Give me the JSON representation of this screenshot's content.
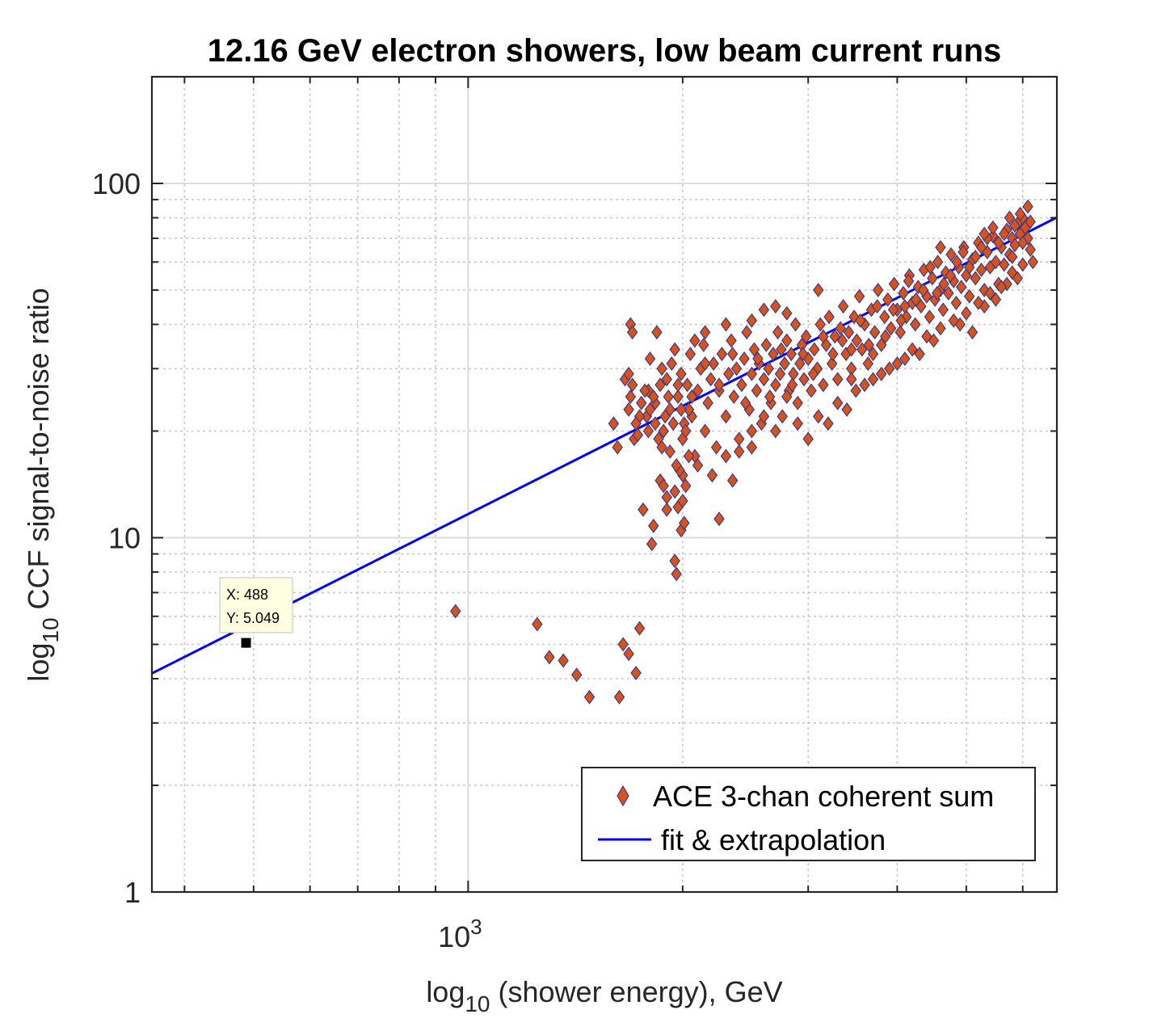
{
  "chart_data": {
    "type": "scatter",
    "title": "12.16 GeV electron showers, low beam current runs",
    "xlabel": "log10 (shower energy), GeV",
    "ylabel": "log10 CCF signal-to-noise ratio",
    "xlabel_parts": {
      "pre": "log",
      "sub": "10",
      "post": " (shower energy), GeV"
    },
    "ylabel_parts": {
      "pre": "log",
      "sub": "10",
      "post": " CCF signal-to-noise ratio"
    },
    "xscale": "log",
    "yscale": "log",
    "xlim": [
      360,
      6700
    ],
    "ylim": [
      1,
      200
    ],
    "grid": true,
    "x_major_ticks": [
      {
        "value": 1000,
        "base": "10",
        "exp": "3"
      }
    ],
    "y_major_ticks": [
      {
        "value": 1,
        "label": "1"
      },
      {
        "value": 10,
        "label": "10"
      },
      {
        "value": 100,
        "label": "100"
      }
    ],
    "legend": {
      "location": "bottom-right",
      "entries": [
        "ACE 3-chan coherent sum",
        "fit & extrapolation"
      ]
    },
    "series": [
      {
        "name": "ACE 3-chan coherent sum",
        "kind": "scatter",
        "marker": "diamond",
        "face_color": "#D95319",
        "edge_color": "#3A3A8C",
        "points": [
          [
            960,
            6.2
          ],
          [
            1250,
            5.7
          ],
          [
            1300,
            4.6
          ],
          [
            1360,
            4.5
          ],
          [
            1420,
            4.1
          ],
          [
            1480,
            3.55
          ],
          [
            1630,
            3.55
          ],
          [
            1650,
            5.0
          ],
          [
            1680,
            4.7
          ],
          [
            1720,
            4.15
          ],
          [
            1740,
            5.55
          ],
          [
            1660,
            28
          ],
          [
            1690,
            40
          ],
          [
            1700,
            38
          ],
          [
            1680,
            29
          ],
          [
            1710,
            19
          ],
          [
            1760,
            12
          ],
          [
            1820,
            10.8
          ],
          [
            1810,
            9.6
          ],
          [
            1840,
            38
          ],
          [
            1860,
            14.5
          ],
          [
            1880,
            14
          ],
          [
            1900,
            13
          ],
          [
            1600,
            21
          ],
          [
            1620,
            18
          ],
          [
            1780,
            22
          ],
          [
            1790,
            26
          ],
          [
            1800,
            32
          ],
          [
            1830,
            24
          ],
          [
            1860,
            27
          ],
          [
            1870,
            30
          ],
          [
            1880,
            20
          ],
          [
            1900,
            28
          ],
          [
            1920,
            23
          ],
          [
            1930,
            31
          ],
          [
            1950,
            34
          ],
          [
            1970,
            25
          ],
          [
            1990,
            29
          ],
          [
            2010,
            21
          ],
          [
            2030,
            27
          ],
          [
            2050,
            33
          ],
          [
            2060,
            22
          ],
          [
            2080,
            17
          ],
          [
            2100,
            26
          ],
          [
            2120,
            30
          ],
          [
            2140,
            35
          ],
          [
            2150,
            20
          ],
          [
            2170,
            24
          ],
          [
            2190,
            28
          ],
          [
            2210,
            31
          ],
          [
            2230,
            18
          ],
          [
            2250,
            26
          ],
          [
            2270,
            33
          ],
          [
            2300,
            22
          ],
          [
            2320,
            29
          ],
          [
            2340,
            36
          ],
          [
            2360,
            25
          ],
          [
            2380,
            30
          ],
          [
            2400,
            19
          ],
          [
            2420,
            27
          ],
          [
            2440,
            32
          ],
          [
            2460,
            38
          ],
          [
            2480,
            23
          ],
          [
            2500,
            29
          ],
          [
            2520,
            34
          ],
          [
            2540,
            26
          ],
          [
            2560,
            31
          ],
          [
            2580,
            21
          ],
          [
            2600,
            28
          ],
          [
            2620,
            35
          ],
          [
            2640,
            30
          ],
          [
            2660,
            24
          ],
          [
            2680,
            33
          ],
          [
            2700,
            27
          ],
          [
            2720,
            38
          ],
          [
            2740,
            29
          ],
          [
            2760,
            22
          ],
          [
            2780,
            31
          ],
          [
            2800,
            36
          ],
          [
            2820,
            26
          ],
          [
            2840,
            33
          ],
          [
            2860,
            29
          ],
          [
            2880,
            40
          ],
          [
            2900,
            24
          ],
          [
            2920,
            31
          ],
          [
            2940,
            35
          ],
          [
            2960,
            28
          ],
          [
            2980,
            37
          ],
          [
            3000,
            32
          ],
          [
            3030,
            26
          ],
          [
            3060,
            34
          ],
          [
            3090,
            30
          ],
          [
            3120,
            40
          ],
          [
            3150,
            27
          ],
          [
            3180,
            35
          ],
          [
            3210,
            42
          ],
          [
            3240,
            31
          ],
          [
            3270,
            37
          ],
          [
            3300,
            28
          ],
          [
            3330,
            39
          ],
          [
            3360,
            45
          ],
          [
            3390,
            33
          ],
          [
            3420,
            38
          ],
          [
            3450,
            30
          ],
          [
            3480,
            42
          ],
          [
            3510,
            36
          ],
          [
            3540,
            48
          ],
          [
            3570,
            34
          ],
          [
            3600,
            40
          ],
          [
            3640,
            31
          ],
          [
            3680,
            44
          ],
          [
            3720,
            38
          ],
          [
            3760,
            50
          ],
          [
            3800,
            35
          ],
          [
            3840,
            42
          ],
          [
            3880,
            47
          ],
          [
            3920,
            39
          ],
          [
            3960,
            52
          ],
          [
            4000,
            44
          ],
          [
            4040,
            38
          ],
          [
            4080,
            49
          ],
          [
            4120,
            42
          ],
          [
            4160,
            55
          ],
          [
            4200,
            46
          ],
          [
            4240,
            40
          ],
          [
            4280,
            51
          ],
          [
            4320,
            45
          ],
          [
            4360,
            57
          ],
          [
            4400,
            48
          ],
          [
            4440,
            42
          ],
          [
            4480,
            54
          ],
          [
            4520,
            47
          ],
          [
            4560,
            60
          ],
          [
            4600,
            50
          ],
          [
            4640,
            44
          ],
          [
            4680,
            56
          ],
          [
            4720,
            49
          ],
          [
            4760,
            63
          ],
          [
            4800,
            53
          ],
          [
            4840,
            46
          ],
          [
            4880,
            58
          ],
          [
            4920,
            51
          ],
          [
            4960,
            66
          ],
          [
            5000,
            55
          ],
          [
            5050,
            48
          ],
          [
            5100,
            61
          ],
          [
            5150,
            54
          ],
          [
            5200,
            68
          ],
          [
            5250,
            57
          ],
          [
            5300,
            50
          ],
          [
            5350,
            64
          ],
          [
            5400,
            58
          ],
          [
            5450,
            71
          ],
          [
            5500,
            60
          ],
          [
            5550,
            52
          ],
          [
            5600,
            66
          ],
          [
            5650,
            59
          ],
          [
            5700,
            74
          ],
          [
            5750,
            63
          ],
          [
            5800,
            70
          ],
          [
            5850,
            67
          ],
          [
            5900,
            77
          ],
          [
            5950,
            72
          ],
          [
            6000,
            80
          ],
          [
            6050,
            75
          ],
          [
            6100,
            86
          ],
          [
            6150,
            78
          ],
          [
            6200,
            60
          ],
          [
            5100,
            38
          ],
          [
            4900,
            40
          ],
          [
            5300,
            45
          ],
          [
            5500,
            47
          ],
          [
            5700,
            52
          ],
          [
            5900,
            54
          ],
          [
            4500,
            36
          ],
          [
            4300,
            33
          ],
          [
            4100,
            32
          ],
          [
            3900,
            30
          ],
          [
            3700,
            28
          ],
          [
            3500,
            26
          ],
          [
            3300,
            24
          ],
          [
            3100,
            22
          ],
          [
            2900,
            21
          ],
          [
            2700,
            20
          ],
          [
            2500,
            18
          ],
          [
            2300,
            17
          ],
          [
            2100,
            16
          ],
          [
            2000,
            15
          ],
          [
            1950,
            13.5
          ],
          [
            1900,
            12
          ],
          [
            1980,
            15.5
          ],
          [
            2040,
            17
          ],
          [
            1990,
            10.5
          ],
          [
            2010,
            11
          ],
          [
            1970,
            12.2
          ],
          [
            1950,
            8.6
          ],
          [
            1960,
            7.9
          ],
          [
            2000,
            12.7
          ],
          [
            2020,
            14
          ],
          [
            1960,
            16
          ],
          [
            1920,
            17.5
          ],
          [
            2000,
            19
          ],
          [
            2200,
            15
          ],
          [
            2350,
            14.5
          ],
          [
            2250,
            11.3
          ],
          [
            2400,
            17.5
          ],
          [
            2500,
            20
          ],
          [
            2600,
            22
          ],
          [
            2800,
            25
          ],
          [
            3000,
            19
          ],
          [
            3200,
            21
          ],
          [
            3400,
            23
          ],
          [
            3600,
            27
          ],
          [
            3800,
            29
          ],
          [
            4000,
            31
          ],
          [
            4200,
            34
          ],
          [
            4400,
            37
          ],
          [
            4600,
            39
          ],
          [
            4800,
            41
          ],
          [
            5000,
            43
          ],
          [
            5200,
            46
          ],
          [
            5400,
            49
          ],
          [
            5600,
            51
          ],
          [
            5800,
            56
          ],
          [
            6000,
            59
          ],
          [
            6150,
            65
          ],
          [
            6100,
            70
          ],
          [
            5950,
            82
          ],
          [
            5850,
            76
          ],
          [
            5750,
            80
          ],
          [
            5650,
            72
          ],
          [
            5550,
            68
          ],
          [
            5450,
            75
          ],
          [
            5350,
            70
          ],
          [
            5250,
            66
          ],
          [
            5150,
            62
          ],
          [
            5050,
            58
          ],
          [
            4950,
            64
          ],
          [
            4850,
            60
          ],
          [
            4750,
            55
          ],
          [
            4650,
            52
          ],
          [
            4550,
            49
          ],
          [
            4450,
            58
          ],
          [
            4350,
            50
          ],
          [
            4250,
            47
          ],
          [
            4150,
            53
          ],
          [
            4050,
            41
          ],
          [
            3950,
            44
          ],
          [
            3850,
            37
          ],
          [
            3750,
            45
          ],
          [
            3650,
            35
          ],
          [
            3550,
            41
          ],
          [
            3450,
            34
          ],
          [
            3350,
            36
          ],
          [
            3250,
            33
          ],
          [
            3150,
            37
          ],
          [
            3050,
            29
          ],
          [
            2950,
            33
          ],
          [
            2850,
            27
          ],
          [
            2750,
            34
          ],
          [
            2650,
            25
          ],
          [
            2550,
            32
          ],
          [
            2450,
            24
          ],
          [
            2350,
            33
          ],
          [
            2250,
            27
          ],
          [
            2150,
            31
          ],
          [
            2080,
            36
          ],
          [
            2060,
            25
          ],
          [
            2040,
            23
          ],
          [
            2020,
            20
          ],
          [
            1990,
            23
          ],
          [
            1970,
            27
          ],
          [
            1940,
            21
          ],
          [
            1910,
            25
          ],
          [
            1890,
            22
          ],
          [
            1870,
            18
          ],
          [
            1850,
            19
          ],
          [
            1830,
            21
          ],
          [
            1820,
            25
          ],
          [
            1800,
            23
          ],
          [
            1790,
            20
          ],
          [
            1770,
            26
          ],
          [
            1750,
            24
          ],
          [
            1740,
            22
          ],
          [
            1730,
            19.5
          ],
          [
            1720,
            21
          ],
          [
            1700,
            27
          ],
          [
            1690,
            25
          ],
          [
            1680,
            23
          ],
          [
            2600,
            44
          ],
          [
            2800,
            43
          ],
          [
            3100,
            50
          ],
          [
            3450,
            28
          ],
          [
            3700,
            33
          ],
          [
            4100,
            45
          ],
          [
            4600,
            66
          ],
          [
            5800,
            62
          ],
          [
            6000,
            68
          ],
          [
            5300,
            72
          ],
          [
            2300,
            40
          ],
          [
            2150,
            38
          ],
          [
            2500,
            41
          ],
          [
            2700,
            45
          ]
        ]
      },
      {
        "name": "fit & extrapolation",
        "kind": "line",
        "color": "#0000FF",
        "points": [
          [
            360,
            4.14
          ],
          [
            6700,
            80.16
          ]
        ]
      }
    ],
    "datatip": {
      "x_label": "X: 488",
      "y_label": "Y: 5.049",
      "x": 488,
      "y": 5.049
    }
  }
}
